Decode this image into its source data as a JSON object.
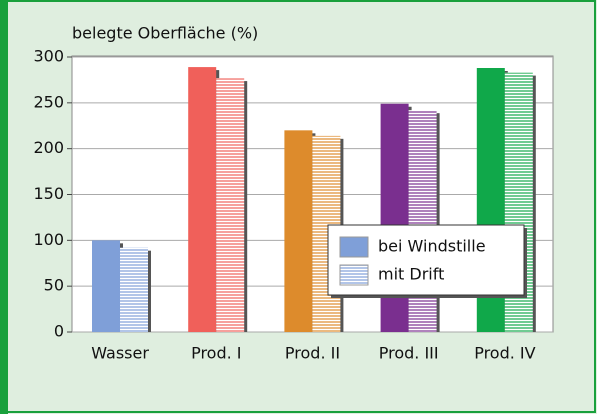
{
  "chart_data": {
    "type": "bar",
    "y_label": "belegte Oberfläche (%)",
    "categories": [
      "Wasser",
      "Prod. I",
      "Prod. II",
      "Prod. III",
      "Prod. IV"
    ],
    "category_colors": [
      "#7f9fd8",
      "#f0605a",
      "#dd8b2c",
      "#7a2f8f",
      "#10a84a"
    ],
    "series": [
      {
        "name": "bei Windstille",
        "color": "#7f9fd8",
        "fill": "solid",
        "values": [
          100,
          289,
          220,
          249,
          288
        ]
      },
      {
        "name": "mit Drift",
        "color": "#7f9fd8",
        "fill": "stripes",
        "values": [
          92,
          277,
          214,
          242,
          283
        ]
      }
    ],
    "ylim": [
      0,
      300
    ],
    "yticks": [
      0,
      50,
      100,
      150,
      200,
      250,
      300
    ],
    "grid": true,
    "legend": "center right"
  }
}
